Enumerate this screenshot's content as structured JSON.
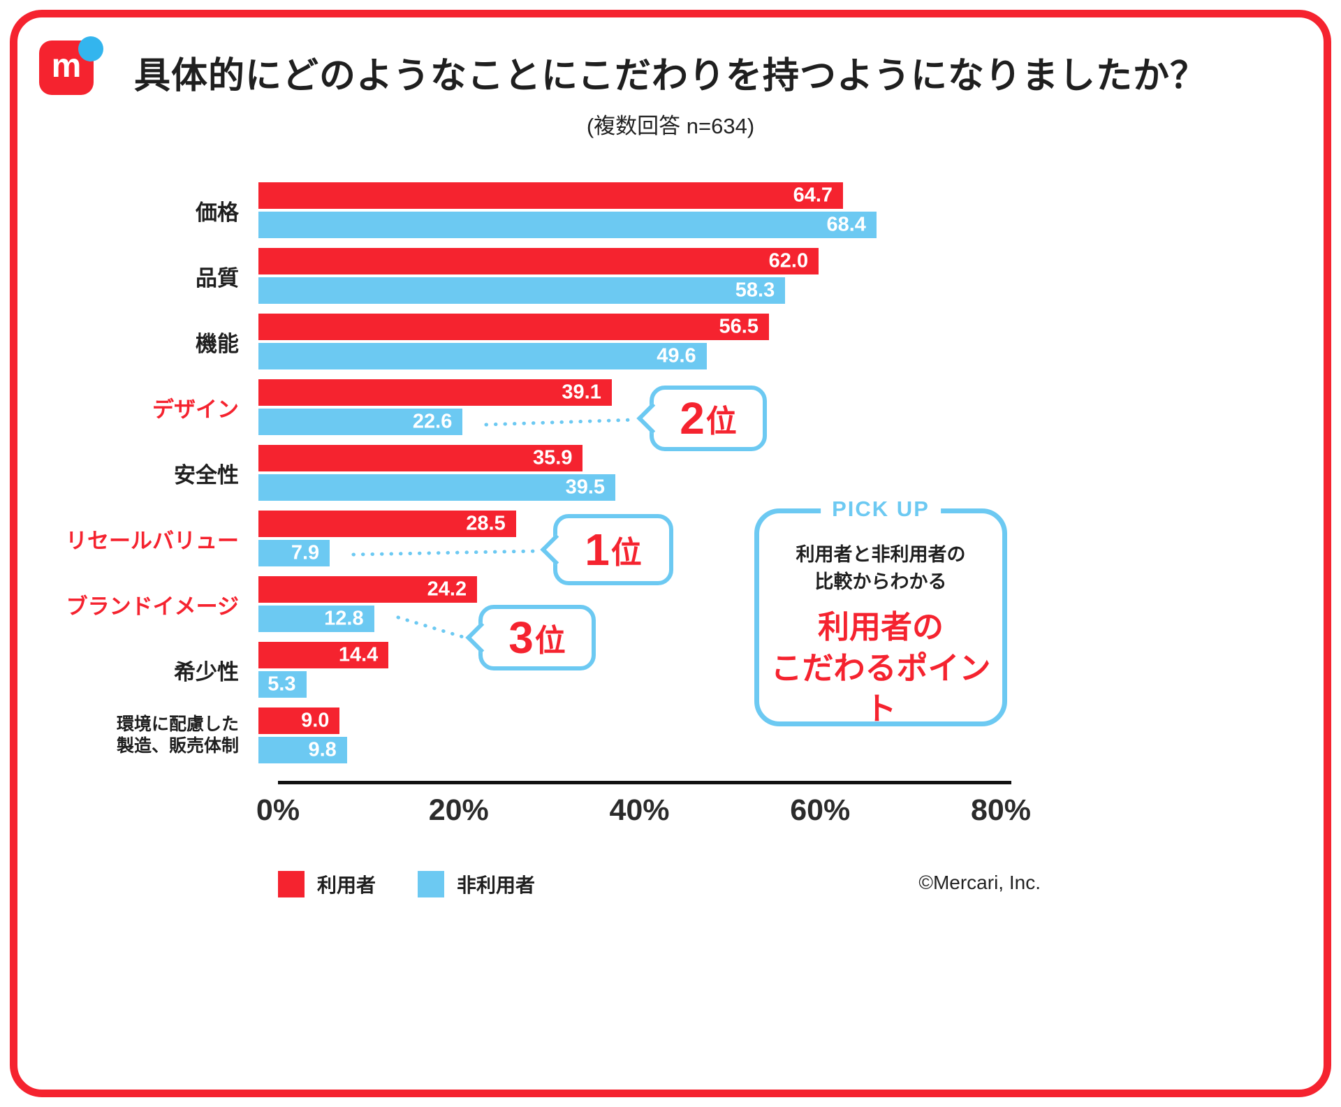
{
  "page": {
    "title": "具体的にどのようなことにこだわりを持つようになりましたか？",
    "subtitle": "(複数回答 n=634)",
    "footer": "©Mercari, Inc.",
    "logo_letter": "m"
  },
  "colors": {
    "red": "#f5232f",
    "blue": "#6cc9f2",
    "logo_dot": "#33b5ee",
    "axis": "#111111"
  },
  "chart_data": {
    "type": "bar",
    "orientation": "horizontal",
    "title": "具体的にどのようなことにこだわりを持つようになりましたか？",
    "subtitle": "(複数回答 n=634)",
    "xlim": [
      0,
      80
    ],
    "x_ticks": [
      "0%",
      "20%",
      "40%",
      "60%",
      "80%"
    ],
    "categories": [
      "価格",
      "品質",
      "機能",
      "デザイン",
      "安全性",
      "リセールバリュー",
      "ブランドイメージ",
      "希少性",
      "環境に配慮した\n製造、販売体制"
    ],
    "highlight_categories": [
      "デザイン",
      "リセールバリュー",
      "ブランドイメージ"
    ],
    "series": [
      {
        "name": "利用者",
        "key": "users",
        "color": "#f5232f",
        "values": [
          64.7,
          62.0,
          56.5,
          39.1,
          35.9,
          28.5,
          24.2,
          14.4,
          9.0
        ]
      },
      {
        "name": "非利用者",
        "key": "nonusers",
        "color": "#6cc9f2",
        "values": [
          68.4,
          58.3,
          49.6,
          22.6,
          39.5,
          7.9,
          12.8,
          5.3,
          9.8
        ]
      }
    ],
    "annotations": [
      {
        "rank": "2",
        "suffix": "位",
        "category": "デザイン"
      },
      {
        "rank": "1",
        "suffix": "位",
        "category": "リセールバリュー"
      },
      {
        "rank": "3",
        "suffix": "位",
        "category": "ブランドイメージ"
      }
    ]
  },
  "legend": [
    {
      "label": "利用者",
      "color": "#f5232f"
    },
    {
      "label": "非利用者",
      "color": "#6cc9f2"
    }
  ],
  "pickup": {
    "tag": "PICK UP",
    "line1": "利用者と非利用者の",
    "line2": "比較からわかる",
    "highlight1": "利用者の",
    "highlight2": "こだわるポイント"
  }
}
